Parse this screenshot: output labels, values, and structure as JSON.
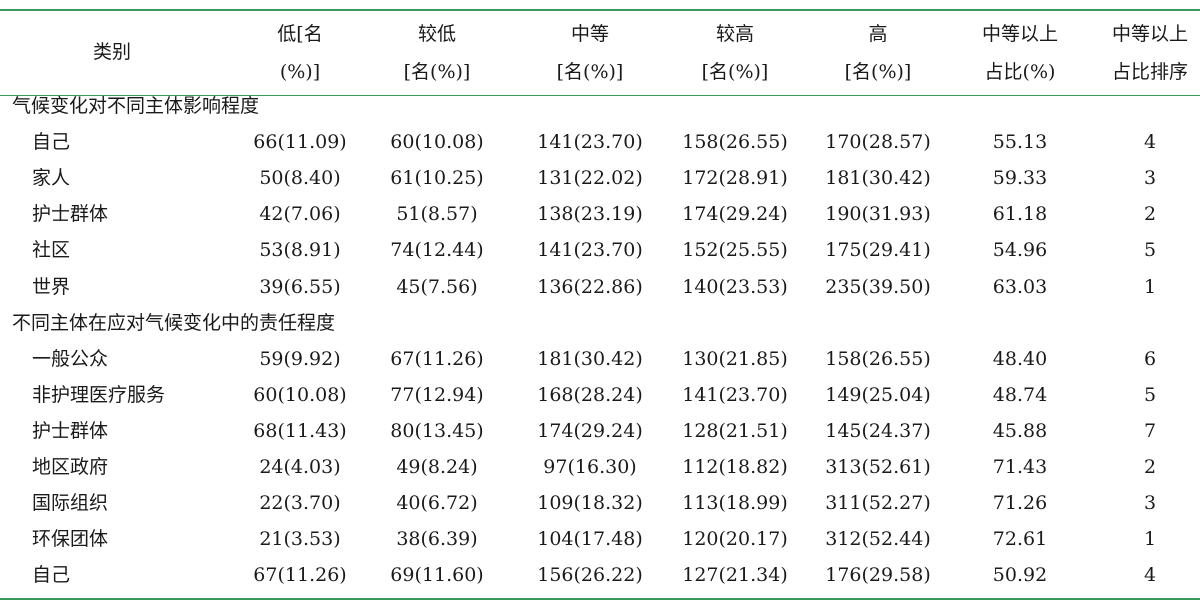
{
  "colors": {
    "rule": "#3a9a5b",
    "text": "#1a1a1a"
  },
  "header": {
    "category": "类别",
    "cols": [
      [
        "低[名",
        "(%)]"
      ],
      [
        "较低",
        "[名(%)]"
      ],
      [
        "中等",
        "[名(%)]"
      ],
      [
        "较高",
        "[名(%)]"
      ],
      [
        "高",
        "[名(%)]"
      ],
      [
        "中等以上",
        "占比(%)"
      ],
      [
        "中等以上",
        "占比排序"
      ]
    ]
  },
  "sections": [
    {
      "title": "气候变化对不同主体影响程度",
      "rows": [
        [
          "自己",
          "66(11.09)",
          "60(10.08)",
          "141(23.70)",
          "158(26.55)",
          "170(28.57)",
          "55.13",
          "4"
        ],
        [
          "家人",
          "50(8.40)",
          "61(10.25)",
          "131(22.02)",
          "172(28.91)",
          "181(30.42)",
          "59.33",
          "3"
        ],
        [
          "护士群体",
          "42(7.06)",
          "51(8.57)",
          "138(23.19)",
          "174(29.24)",
          "190(31.93)",
          "61.18",
          "2"
        ],
        [
          "社区",
          "53(8.91)",
          "74(12.44)",
          "141(23.70)",
          "152(25.55)",
          "175(29.41)",
          "54.96",
          "5"
        ],
        [
          "世界",
          "39(6.55)",
          "45(7.56)",
          "136(22.86)",
          "140(23.53)",
          "235(39.50)",
          "63.03",
          "1"
        ]
      ]
    },
    {
      "title": "不同主体在应对气候变化中的责任程度",
      "rows": [
        [
          "一般公众",
          "59(9.92)",
          "67(11.26)",
          "181(30.42)",
          "130(21.85)",
          "158(26.55)",
          "48.40",
          "6"
        ],
        [
          "非护理医疗服务",
          "60(10.08)",
          "77(12.94)",
          "168(28.24)",
          "141(23.70)",
          "149(25.04)",
          "48.74",
          "5"
        ],
        [
          "护士群体",
          "68(11.43)",
          "80(13.45)",
          "174(29.24)",
          "128(21.51)",
          "145(24.37)",
          "45.88",
          "7"
        ],
        [
          "地区政府",
          "24(4.03)",
          "49(8.24)",
          "97(16.30)",
          "112(18.82)",
          "313(52.61)",
          "71.43",
          "2"
        ],
        [
          "国际组织",
          "22(3.70)",
          "40(6.72)",
          "109(18.32)",
          "113(18.99)",
          "311(52.27)",
          "71.26",
          "3"
        ],
        [
          "环保团体",
          "21(3.53)",
          "38(6.39)",
          "104(17.48)",
          "120(20.17)",
          "312(52.44)",
          "72.61",
          "1"
        ],
        [
          "自己",
          "67(11.26)",
          "69(11.60)",
          "156(26.22)",
          "127(21.34)",
          "176(29.58)",
          "50.92",
          "4"
        ]
      ]
    }
  ]
}
